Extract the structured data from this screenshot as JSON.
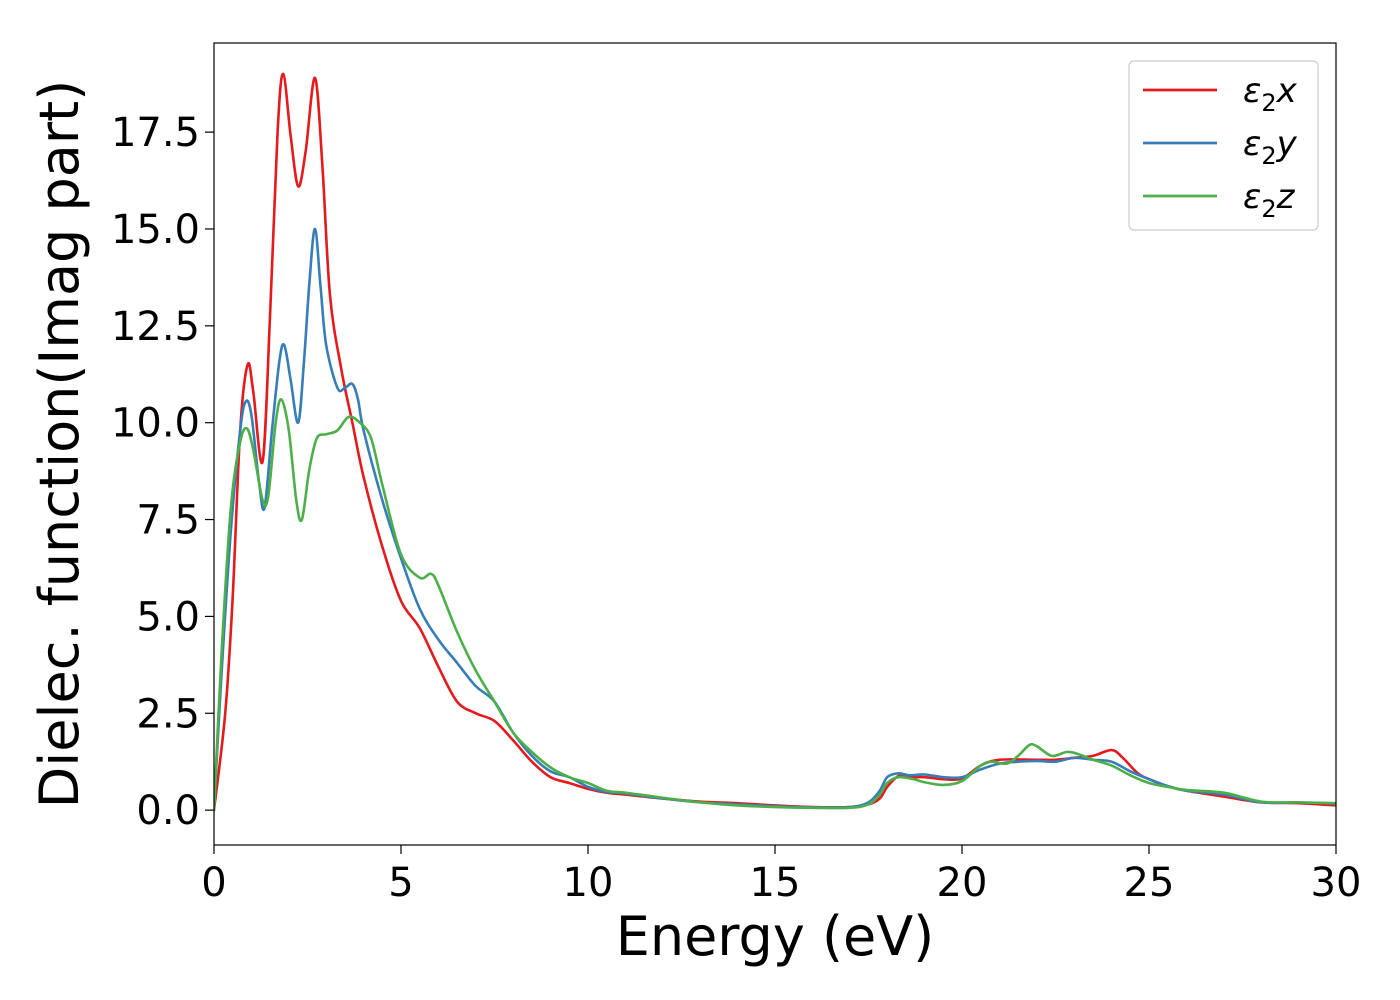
{
  "chart_data": {
    "type": "line",
    "xlabel": "Energy (eV)",
    "ylabel": "Dielec. function(Imag part)",
    "xlim": [
      0,
      30
    ],
    "ylim": [
      -0.9,
      19.8
    ],
    "xticks": [
      0,
      5,
      10,
      15,
      20,
      25,
      30
    ],
    "xtick_labels": [
      "0",
      "5",
      "10",
      "15",
      "20",
      "25",
      "30"
    ],
    "yticks": [
      0,
      2.5,
      5,
      7.5,
      10,
      12.5,
      15,
      17.5
    ],
    "ytick_labels": [
      "0.0",
      "2.5",
      "5.0",
      "7.5",
      "10.0",
      "12.5",
      "15.0",
      "17.5"
    ],
    "grid": false,
    "legend_position": "top-right",
    "series": [
      {
        "name": "ε2x",
        "legend_base": "ε",
        "legend_sub": "2",
        "legend_var": "x",
        "color": "#e41a1c",
        "points": [
          [
            0,
            0
          ],
          [
            0.3,
            2.5
          ],
          [
            0.5,
            5.5
          ],
          [
            0.7,
            9.8
          ],
          [
            0.9,
            11.5
          ],
          [
            1.05,
            10.8
          ],
          [
            1.3,
            9.0
          ],
          [
            1.5,
            12.8
          ],
          [
            1.7,
            17.5
          ],
          [
            1.85,
            19.0
          ],
          [
            2.05,
            17.4
          ],
          [
            2.25,
            16.1
          ],
          [
            2.45,
            17.0
          ],
          [
            2.7,
            18.9
          ],
          [
            2.9,
            16.6
          ],
          [
            3.1,
            13.3
          ],
          [
            3.4,
            11.4
          ],
          [
            3.7,
            10.0
          ],
          [
            4.0,
            8.6
          ],
          [
            4.5,
            6.8
          ],
          [
            5.0,
            5.4
          ],
          [
            5.5,
            4.7
          ],
          [
            6.0,
            3.7
          ],
          [
            6.5,
            2.8
          ],
          [
            7.0,
            2.5
          ],
          [
            7.5,
            2.3
          ],
          [
            8.0,
            1.8
          ],
          [
            8.5,
            1.25
          ],
          [
            9.0,
            0.85
          ],
          [
            9.5,
            0.7
          ],
          [
            10.0,
            0.55
          ],
          [
            10.5,
            0.45
          ],
          [
            11.0,
            0.4
          ],
          [
            12.0,
            0.3
          ],
          [
            13.0,
            0.22
          ],
          [
            14.0,
            0.18
          ],
          [
            15.0,
            0.12
          ],
          [
            16.0,
            0.08
          ],
          [
            17.0,
            0.08
          ],
          [
            17.5,
            0.15
          ],
          [
            17.8,
            0.3
          ],
          [
            18.0,
            0.6
          ],
          [
            18.3,
            0.88
          ],
          [
            18.6,
            0.85
          ],
          [
            19.0,
            0.85
          ],
          [
            19.5,
            0.8
          ],
          [
            20.0,
            0.82
          ],
          [
            20.5,
            1.15
          ],
          [
            21.0,
            1.3
          ],
          [
            22.0,
            1.3
          ],
          [
            22.5,
            1.3
          ],
          [
            23.0,
            1.35
          ],
          [
            23.5,
            1.4
          ],
          [
            24.0,
            1.55
          ],
          [
            24.3,
            1.35
          ],
          [
            24.7,
            0.95
          ],
          [
            25.0,
            0.8
          ],
          [
            25.5,
            0.62
          ],
          [
            26.0,
            0.5
          ],
          [
            27.0,
            0.35
          ],
          [
            28.0,
            0.2
          ],
          [
            29.0,
            0.18
          ],
          [
            30.0,
            0.12
          ]
        ]
      },
      {
        "name": "ε2y",
        "legend_base": "ε",
        "legend_sub": "2",
        "legend_var": "y",
        "color": "#377eb8",
        "points": [
          [
            0,
            0
          ],
          [
            0.2,
            3.5
          ],
          [
            0.45,
            7.2
          ],
          [
            0.7,
            9.8
          ],
          [
            0.85,
            10.55
          ],
          [
            1.0,
            10.2
          ],
          [
            1.2,
            8.5
          ],
          [
            1.35,
            7.8
          ],
          [
            1.55,
            9.8
          ],
          [
            1.75,
            11.6
          ],
          [
            1.88,
            12.0
          ],
          [
            2.05,
            11.1
          ],
          [
            2.25,
            10.0
          ],
          [
            2.4,
            11.5
          ],
          [
            2.55,
            13.6
          ],
          [
            2.7,
            15.0
          ],
          [
            2.85,
            13.5
          ],
          [
            3.0,
            12.0
          ],
          [
            3.3,
            10.9
          ],
          [
            3.5,
            10.9
          ],
          [
            3.7,
            11.0
          ],
          [
            3.85,
            10.6
          ],
          [
            4.0,
            9.8
          ],
          [
            4.5,
            8.0
          ],
          [
            5.0,
            6.5
          ],
          [
            5.5,
            5.2
          ],
          [
            6.0,
            4.4
          ],
          [
            6.5,
            3.8
          ],
          [
            7.0,
            3.2
          ],
          [
            7.5,
            2.8
          ],
          [
            8.0,
            2.0
          ],
          [
            8.5,
            1.4
          ],
          [
            9.0,
            1.0
          ],
          [
            9.5,
            0.85
          ],
          [
            10.0,
            0.6
          ],
          [
            10.5,
            0.47
          ],
          [
            11.0,
            0.43
          ],
          [
            12.0,
            0.3
          ],
          [
            13.0,
            0.2
          ],
          [
            14.0,
            0.15
          ],
          [
            15.0,
            0.1
          ],
          [
            16.0,
            0.07
          ],
          [
            17.0,
            0.08
          ],
          [
            17.5,
            0.2
          ],
          [
            17.8,
            0.5
          ],
          [
            18.0,
            0.85
          ],
          [
            18.3,
            0.95
          ],
          [
            18.6,
            0.9
          ],
          [
            19.0,
            0.92
          ],
          [
            19.5,
            0.85
          ],
          [
            20.0,
            0.85
          ],
          [
            20.5,
            1.05
          ],
          [
            21.0,
            1.2
          ],
          [
            21.5,
            1.25
          ],
          [
            22.0,
            1.27
          ],
          [
            22.5,
            1.25
          ],
          [
            23.0,
            1.35
          ],
          [
            23.5,
            1.3
          ],
          [
            24.0,
            1.25
          ],
          [
            24.5,
            1.0
          ],
          [
            25.0,
            0.8
          ],
          [
            25.5,
            0.62
          ],
          [
            26.0,
            0.5
          ],
          [
            27.0,
            0.4
          ],
          [
            28.0,
            0.2
          ],
          [
            29.0,
            0.2
          ],
          [
            30.0,
            0.17
          ]
        ]
      },
      {
        "name": "ε2z",
        "legend_base": "ε",
        "legend_sub": "2",
        "legend_var": "z",
        "color": "#4daf4a",
        "points": [
          [
            0,
            0
          ],
          [
            0.2,
            4.0
          ],
          [
            0.45,
            7.8
          ],
          [
            0.7,
            9.5
          ],
          [
            0.88,
            9.85
          ],
          [
            1.05,
            9.3
          ],
          [
            1.3,
            8.0
          ],
          [
            1.45,
            8.1
          ],
          [
            1.65,
            10.0
          ],
          [
            1.8,
            10.6
          ],
          [
            2.0,
            9.8
          ],
          [
            2.2,
            8.0
          ],
          [
            2.35,
            7.5
          ],
          [
            2.55,
            8.8
          ],
          [
            2.75,
            9.6
          ],
          [
            3.0,
            9.7
          ],
          [
            3.3,
            9.8
          ],
          [
            3.6,
            10.15
          ],
          [
            3.9,
            10.0
          ],
          [
            4.2,
            9.6
          ],
          [
            4.5,
            8.4
          ],
          [
            5.0,
            6.6
          ],
          [
            5.5,
            6.0
          ],
          [
            5.8,
            6.1
          ],
          [
            6.0,
            5.8
          ],
          [
            6.5,
            4.6
          ],
          [
            7.0,
            3.6
          ],
          [
            7.5,
            2.8
          ],
          [
            8.0,
            2.0
          ],
          [
            8.5,
            1.5
          ],
          [
            9.0,
            1.1
          ],
          [
            9.5,
            0.85
          ],
          [
            10.0,
            0.7
          ],
          [
            10.5,
            0.5
          ],
          [
            11.0,
            0.45
          ],
          [
            12.0,
            0.32
          ],
          [
            13.0,
            0.2
          ],
          [
            14.0,
            0.12
          ],
          [
            15.0,
            0.08
          ],
          [
            16.0,
            0.06
          ],
          [
            17.0,
            0.06
          ],
          [
            17.5,
            0.15
          ],
          [
            17.8,
            0.4
          ],
          [
            18.0,
            0.7
          ],
          [
            18.3,
            0.85
          ],
          [
            18.7,
            0.8
          ],
          [
            19.0,
            0.72
          ],
          [
            19.5,
            0.65
          ],
          [
            20.0,
            0.75
          ],
          [
            20.5,
            1.15
          ],
          [
            20.8,
            1.25
          ],
          [
            21.2,
            1.2
          ],
          [
            21.5,
            1.4
          ],
          [
            21.8,
            1.68
          ],
          [
            22.0,
            1.65
          ],
          [
            22.4,
            1.4
          ],
          [
            22.8,
            1.5
          ],
          [
            23.1,
            1.45
          ],
          [
            23.5,
            1.3
          ],
          [
            24.0,
            1.15
          ],
          [
            24.5,
            0.9
          ],
          [
            25.0,
            0.7
          ],
          [
            25.5,
            0.6
          ],
          [
            26.0,
            0.52
          ],
          [
            27.0,
            0.45
          ],
          [
            28.0,
            0.22
          ],
          [
            29.0,
            0.2
          ],
          [
            30.0,
            0.18
          ]
        ]
      }
    ]
  }
}
